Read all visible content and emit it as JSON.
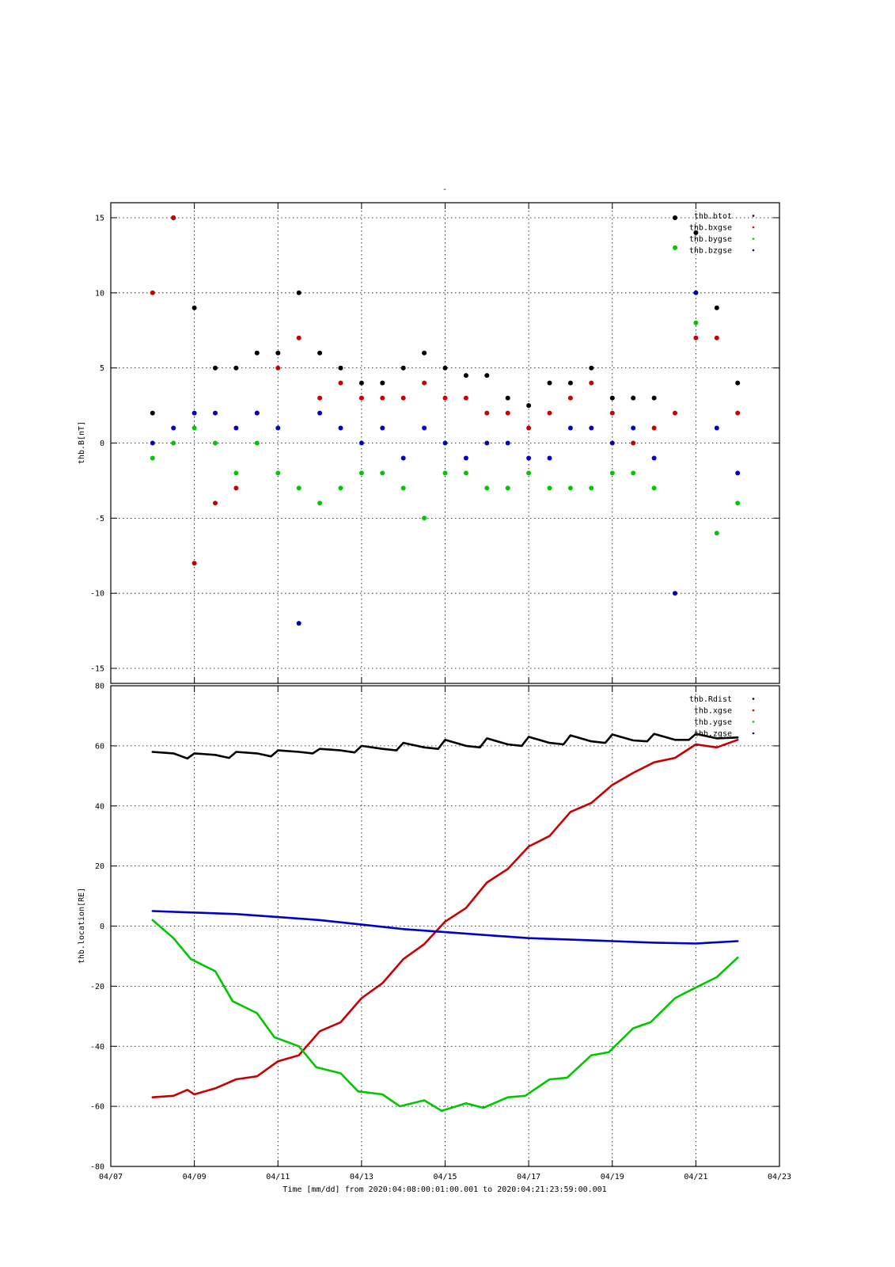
{
  "figure": {
    "top_marker": "-",
    "xlabel": "Time [mm/dd]  from 2020:04:08:00:01:00.001  to  2020:04:21:23:59:00.001",
    "x_tick_labels": [
      "04/07",
      "04/09",
      "04/11",
      "04/13",
      "04/15",
      "04/17",
      "04/19",
      "04/21",
      "04/23"
    ],
    "colors": {
      "black": "#000000",
      "red": "#c80000",
      "green": "#00c800",
      "blue": "#0000c8"
    }
  },
  "chart_data": [
    {
      "type": "scatter",
      "ylabel": "thb.B[nT]",
      "xlim": [
        "2020-04-07",
        "2020-04-23"
      ],
      "ylim": [
        -16,
        16
      ],
      "yticks": [
        -15,
        -10,
        -5,
        0,
        5,
        10,
        15
      ],
      "grid": true,
      "legend_placement": "top-right",
      "series": [
        {
          "name": "thb.btot",
          "color": "#000000",
          "x": [
            "2020-04-08",
            "2020-04-08T12:00",
            "2020-04-09",
            "2020-04-09T12:00",
            "2020-04-10",
            "2020-04-10T12:00",
            "2020-04-11",
            "2020-04-11T12:00",
            "2020-04-12",
            "2020-04-12T12:00",
            "2020-04-13",
            "2020-04-13T12:00",
            "2020-04-14",
            "2020-04-14T12:00",
            "2020-04-15",
            "2020-04-15T12:00",
            "2020-04-16",
            "2020-04-16T12:00",
            "2020-04-17",
            "2020-04-17T12:00",
            "2020-04-18",
            "2020-04-18T12:00",
            "2020-04-19",
            "2020-04-19T12:00",
            "2020-04-20",
            "2020-04-20T12:00",
            "2020-04-21",
            "2020-04-21T12:00",
            "2020-04-22"
          ],
          "y": [
            2,
            15,
            9,
            5,
            5,
            6,
            6,
            10,
            6,
            5,
            4,
            4,
            5,
            6,
            5,
            4.5,
            4.5,
            3,
            2.5,
            4,
            4,
            5,
            3,
            3,
            3,
            15,
            14,
            9,
            4
          ]
        },
        {
          "name": "thb.bxgse",
          "color": "#c80000",
          "x": [
            "2020-04-08",
            "2020-04-08T12:00",
            "2020-04-09",
            "2020-04-09T12:00",
            "2020-04-10",
            "2020-04-10T12:00",
            "2020-04-11",
            "2020-04-11T12:00",
            "2020-04-12",
            "2020-04-12T12:00",
            "2020-04-13",
            "2020-04-13T12:00",
            "2020-04-14",
            "2020-04-14T12:00",
            "2020-04-15",
            "2020-04-15T12:00",
            "2020-04-16",
            "2020-04-16T12:00",
            "2020-04-17",
            "2020-04-17T12:00",
            "2020-04-18",
            "2020-04-18T12:00",
            "2020-04-19",
            "2020-04-19T12:00",
            "2020-04-20",
            "2020-04-20T12:00",
            "2020-04-21",
            "2020-04-21T12:00",
            "2020-04-22"
          ],
          "y": [
            10,
            15,
            -8,
            -4,
            -3,
            2,
            5,
            7,
            3,
            4,
            3,
            3,
            3,
            4,
            3,
            3,
            2,
            2,
            1,
            2,
            3,
            4,
            2,
            0,
            1,
            2,
            7,
            7,
            2
          ]
        },
        {
          "name": "thb.bygse",
          "color": "#00c800",
          "x": [
            "2020-04-08",
            "2020-04-08T12:00",
            "2020-04-09",
            "2020-04-09T12:00",
            "2020-04-10",
            "2020-04-10T12:00",
            "2020-04-11",
            "2020-04-11T12:00",
            "2020-04-12",
            "2020-04-12T12:00",
            "2020-04-13",
            "2020-04-13T12:00",
            "2020-04-14",
            "2020-04-14T12:00",
            "2020-04-15",
            "2020-04-15T12:00",
            "2020-04-16",
            "2020-04-16T12:00",
            "2020-04-17",
            "2020-04-17T12:00",
            "2020-04-18",
            "2020-04-18T12:00",
            "2020-04-19",
            "2020-04-19T12:00",
            "2020-04-20",
            "2020-04-20T12:00",
            "2020-04-21",
            "2020-04-21T12:00",
            "2020-04-22"
          ],
          "y": [
            -1,
            0,
            1,
            0,
            -2,
            0,
            -2,
            -3,
            -4,
            -3,
            -2,
            -2,
            -3,
            -5,
            -2,
            -2,
            -3,
            -3,
            -2,
            -3,
            -3,
            -3,
            -2,
            -2,
            -3,
            13,
            8,
            -6,
            -4
          ]
        },
        {
          "name": "thb.bzgse",
          "color": "#0000c8",
          "x": [
            "2020-04-08",
            "2020-04-08T12:00",
            "2020-04-09",
            "2020-04-09T12:00",
            "2020-04-10",
            "2020-04-10T12:00",
            "2020-04-11",
            "2020-04-11T12:00",
            "2020-04-12",
            "2020-04-12T12:00",
            "2020-04-13",
            "2020-04-13T12:00",
            "2020-04-14",
            "2020-04-14T12:00",
            "2020-04-15",
            "2020-04-15T12:00",
            "2020-04-16",
            "2020-04-16T12:00",
            "2020-04-17",
            "2020-04-17T12:00",
            "2020-04-18",
            "2020-04-18T12:00",
            "2020-04-19",
            "2020-04-19T12:00",
            "2020-04-20",
            "2020-04-20T12:00",
            "2020-04-21",
            "2020-04-21T12:00",
            "2020-04-22"
          ],
          "y": [
            0,
            1,
            2,
            2,
            1,
            2,
            1,
            -12,
            2,
            1,
            0,
            1,
            -1,
            1,
            0,
            -1,
            0,
            0,
            -1,
            -1,
            1,
            1,
            0,
            1,
            -1,
            -10,
            10,
            1,
            -2
          ]
        }
      ]
    },
    {
      "type": "line",
      "ylabel": "thb.location[RE]",
      "xlim": [
        "2020-04-07",
        "2020-04-23"
      ],
      "ylim": [
        -80,
        80
      ],
      "yticks": [
        -80,
        -60,
        -40,
        -20,
        0,
        20,
        40,
        60,
        80
      ],
      "grid": true,
      "legend_placement": "top-right",
      "series": [
        {
          "name": "thb.Rdist",
          "color": "#000000",
          "x": [
            "2020-04-08",
            "2020-04-08T12:00",
            "2020-04-08T20:00",
            "2020-04-09",
            "2020-04-09T12:00",
            "2020-04-09T20:00",
            "2020-04-10",
            "2020-04-10T12:00",
            "2020-04-10T20:00",
            "2020-04-11",
            "2020-04-11T12:00",
            "2020-04-11T20:00",
            "2020-04-12",
            "2020-04-12T12:00",
            "2020-04-12T20:00",
            "2020-04-13",
            "2020-04-13T12:00",
            "2020-04-13T20:00",
            "2020-04-14",
            "2020-04-14T12:00",
            "2020-04-14T20:00",
            "2020-04-15",
            "2020-04-15T12:00",
            "2020-04-15T20:00",
            "2020-04-16",
            "2020-04-16T12:00",
            "2020-04-16T20:00",
            "2020-04-17",
            "2020-04-17T12:00",
            "2020-04-17T20:00",
            "2020-04-18",
            "2020-04-18T12:00",
            "2020-04-18T20:00",
            "2020-04-19",
            "2020-04-19T12:00",
            "2020-04-19T20:00",
            "2020-04-20",
            "2020-04-20T12:00",
            "2020-04-20T20:00",
            "2020-04-21",
            "2020-04-21T12:00",
            "2020-04-22"
          ],
          "y": [
            58,
            57.5,
            55.8,
            57.5,
            57,
            56,
            58,
            57.5,
            56.5,
            58.5,
            58,
            57.5,
            59,
            58.5,
            57.8,
            60,
            59,
            58.5,
            61,
            59.5,
            59,
            62,
            60,
            59.5,
            62.5,
            60.5,
            60,
            63,
            61,
            60.5,
            63.5,
            61.5,
            61,
            63.8,
            61.8,
            61.5,
            64,
            62,
            62,
            64,
            62.5,
            62.8
          ]
        },
        {
          "name": "thb.xgse",
          "color": "#c80000",
          "x": [
            "2020-04-08",
            "2020-04-08T12:00",
            "2020-04-08T20:00",
            "2020-04-09",
            "2020-04-09T12:00",
            "2020-04-10",
            "2020-04-10T12:00",
            "2020-04-11",
            "2020-04-11T12:00",
            "2020-04-12",
            "2020-04-12T12:00",
            "2020-04-13",
            "2020-04-13T12:00",
            "2020-04-14",
            "2020-04-14T12:00",
            "2020-04-15",
            "2020-04-15T12:00",
            "2020-04-16",
            "2020-04-16T12:00",
            "2020-04-17",
            "2020-04-17T12:00",
            "2020-04-18",
            "2020-04-18T12:00",
            "2020-04-19",
            "2020-04-19T12:00",
            "2020-04-20",
            "2020-04-20T12:00",
            "2020-04-21",
            "2020-04-21T12:00",
            "2020-04-22"
          ],
          "y": [
            -57,
            -56.5,
            -54.5,
            -56,
            -54,
            -51,
            -50,
            -45,
            -43,
            -35,
            -32,
            -24,
            -19,
            -11,
            -6,
            1.5,
            6,
            14.5,
            19,
            26.5,
            30,
            38,
            41,
            47,
            51,
            54.5,
            56,
            60.5,
            59.5,
            62
          ]
        },
        {
          "name": "thb.ygse",
          "color": "#00c800",
          "x": [
            "2020-04-08",
            "2020-04-08T12:00",
            "2020-04-08T22:00",
            "2020-04-09T12:00",
            "2020-04-09T22:00",
            "2020-04-10T12:00",
            "2020-04-10T22:00",
            "2020-04-11T12:00",
            "2020-04-11T22:00",
            "2020-04-12T12:00",
            "2020-04-12T22:00",
            "2020-04-13T12:00",
            "2020-04-13T22:00",
            "2020-04-14T12:00",
            "2020-04-14T22:00",
            "2020-04-15T12:00",
            "2020-04-15T22:00",
            "2020-04-16T12:00",
            "2020-04-16T22:00",
            "2020-04-17T12:00",
            "2020-04-17T22:00",
            "2020-04-18T12:00",
            "2020-04-18T22:00",
            "2020-04-19T12:00",
            "2020-04-19T22:00",
            "2020-04-20T12:00",
            "2020-04-20T22:00",
            "2020-04-21T12:00",
            "2020-04-22"
          ],
          "y": [
            2,
            -4,
            -11,
            -15,
            -25,
            -29,
            -37,
            -40,
            -47,
            -49,
            -55,
            -56,
            -60,
            -58,
            -61.5,
            -59,
            -60.5,
            -57,
            -56.5,
            -51,
            -50.5,
            -43,
            -42,
            -34,
            -32,
            -24,
            -21,
            -17,
            -10.5
          ]
        },
        {
          "name": "thb.zgse",
          "color": "#0000c8",
          "x": [
            "2020-04-08",
            "2020-04-09",
            "2020-04-10",
            "2020-04-11",
            "2020-04-12",
            "2020-04-13",
            "2020-04-14",
            "2020-04-15",
            "2020-04-16",
            "2020-04-17",
            "2020-04-18",
            "2020-04-19",
            "2020-04-20",
            "2020-04-21",
            "2020-04-22"
          ],
          "y": [
            5,
            4.5,
            4,
            3,
            2,
            0.5,
            -1,
            -2,
            -3,
            -4,
            -4.5,
            -5,
            -5.5,
            -5.8,
            -5
          ]
        }
      ]
    }
  ]
}
